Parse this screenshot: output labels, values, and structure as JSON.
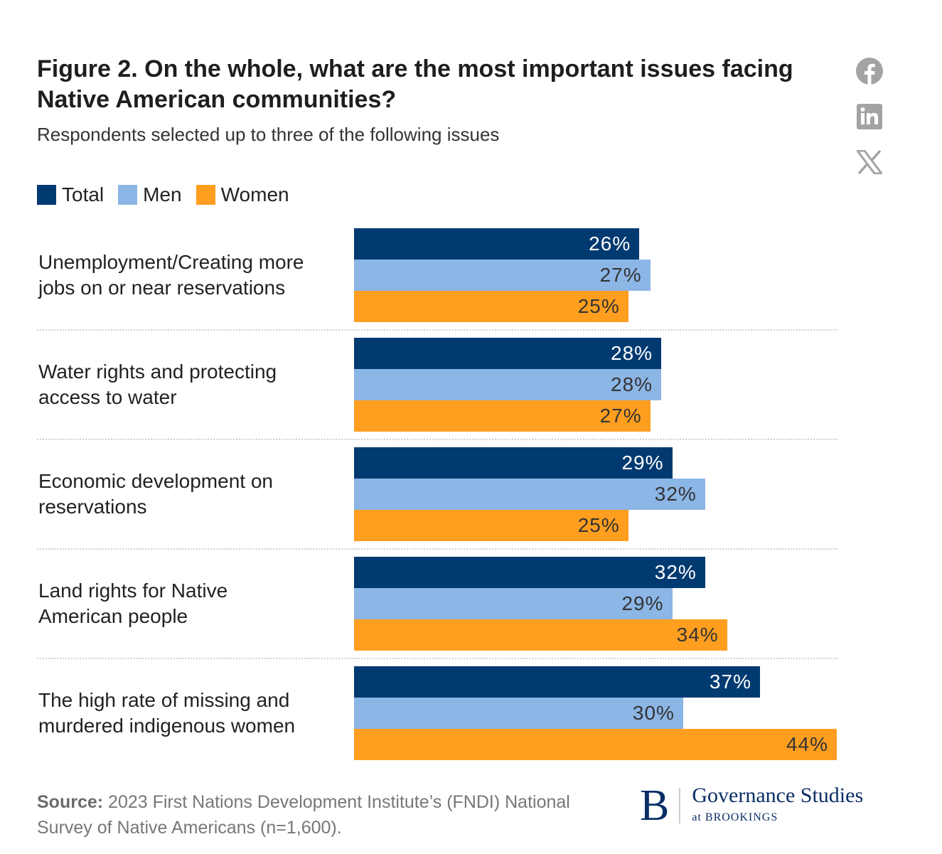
{
  "header": {
    "title": "Figure 2. On the whole, what are the most important issues facing Native American communities?",
    "subtitle": "Respondents selected up to three of the following issues"
  },
  "social": [
    {
      "name": "facebook-icon",
      "label": "Facebook"
    },
    {
      "name": "linkedin-icon",
      "label": "LinkedIn"
    },
    {
      "name": "x-icon",
      "label": "X"
    }
  ],
  "colors": {
    "total": "#003a70",
    "men": "#8cb6e6",
    "women": "#ff9e1f",
    "label_on_dark": "#ffffff",
    "label_on_light": "#333333",
    "social_icon": "#a3a3a3",
    "brand": "#0a2f67"
  },
  "chart_data": {
    "type": "bar",
    "orientation": "horizontal",
    "title": "Figure 2. On the whole, what are the most important issues facing Native American communities?",
    "subtitle": "Respondents selected up to three of the following issues",
    "xlabel": "",
    "ylabel": "",
    "xlim": [
      0,
      44
    ],
    "grid": false,
    "legend_position": "top-left",
    "legend": [
      "Total",
      "Men",
      "Women"
    ],
    "categories": [
      "Unemployment/Creating more jobs on or near reservations",
      "Water rights and protecting access to water",
      "Economic development on reservations",
      "Land rights for Native American people",
      "The high rate of missing and murdered indigenous women"
    ],
    "category_lines": [
      [
        "Unemployment/Creating more",
        "jobs on or near reservations"
      ],
      [
        "Water rights and protecting",
        "access to water"
      ],
      [
        "Economic development on",
        "reservations"
      ],
      [
        "Land rights for Native",
        "American people"
      ],
      [
        "The high rate of missing and",
        "murdered indigenous women"
      ]
    ],
    "series": [
      {
        "name": "Total",
        "key": "total",
        "values": [
          26,
          28,
          29,
          32,
          37
        ]
      },
      {
        "name": "Men",
        "key": "men",
        "values": [
          27,
          28,
          32,
          29,
          30
        ]
      },
      {
        "name": "Women",
        "key": "women",
        "values": [
          25,
          27,
          25,
          34,
          44
        ]
      }
    ],
    "value_suffix": "%"
  },
  "footer": {
    "source_label": "Source:",
    "source_text": " 2023 First Nations Development Institute’s (FNDI) National Survey of Native Americans (n=1,600).",
    "logo_letter": "B",
    "logo_main": "Governance Studies",
    "logo_sub": "at BROOKINGS"
  }
}
